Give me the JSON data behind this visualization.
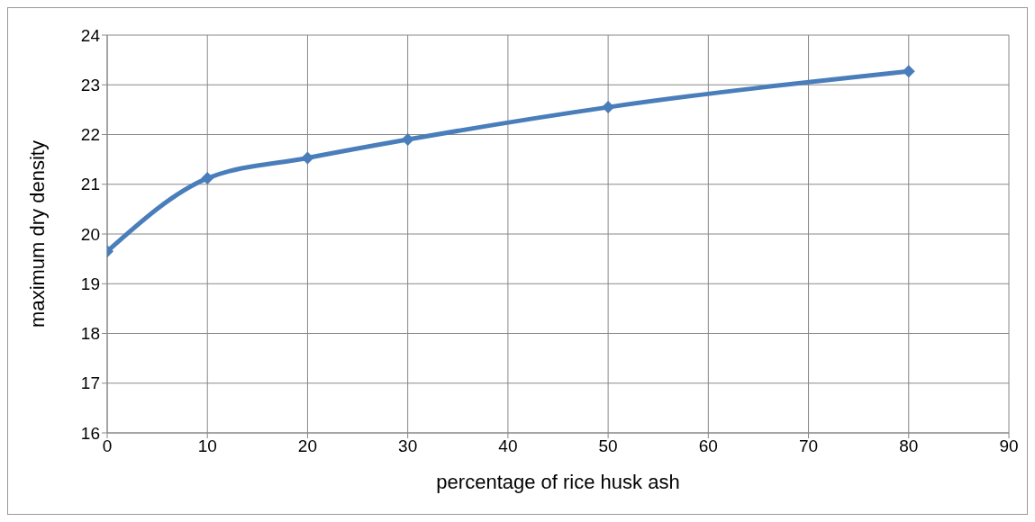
{
  "chart_data": {
    "type": "line",
    "xlabel": "percentage of rice husk ash",
    "ylabel": "maximum dry density",
    "x": [
      0,
      10,
      20,
      30,
      50,
      80
    ],
    "series": [
      {
        "color": "#4a7ebb",
        "values": [
          19.65,
          21.12,
          21.53,
          21.9,
          22.55,
          23.27
        ]
      }
    ],
    "xlim": [
      0,
      90
    ],
    "xticks": [
      0,
      10,
      20,
      30,
      40,
      50,
      60,
      70,
      80,
      90
    ],
    "ylim": [
      16,
      24
    ],
    "yticks": [
      16,
      17,
      18,
      19,
      20,
      21,
      22,
      23,
      24
    ],
    "grid": true,
    "marker": "diamond",
    "line_style": "solid",
    "legend": false
  }
}
